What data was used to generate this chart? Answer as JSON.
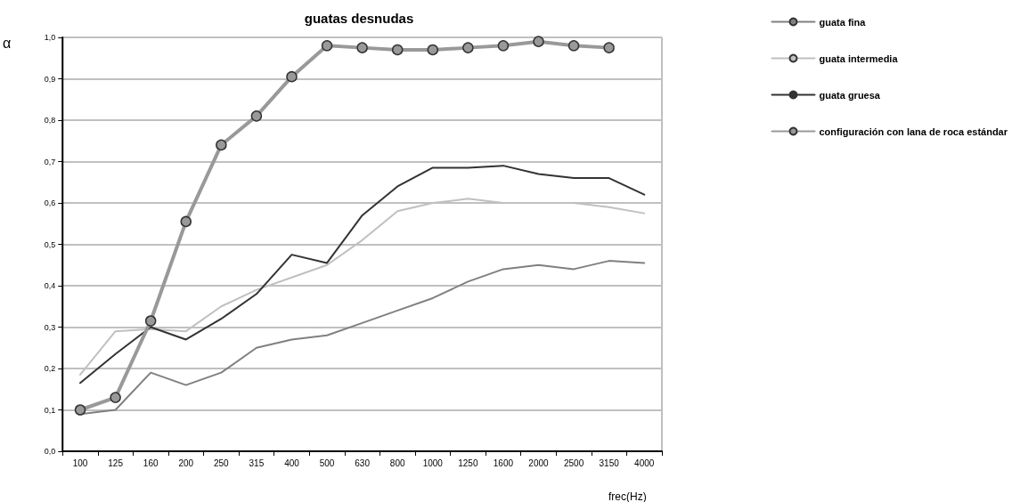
{
  "chart_data": {
    "type": "line",
    "title": "guatas desnudas",
    "xlabel": "frec(Hz)",
    "ylabel": "α",
    "categories": [
      "100",
      "125",
      "160",
      "200",
      "250",
      "315",
      "400",
      "500",
      "630",
      "800",
      "1000",
      "1250",
      "1600",
      "2000",
      "2500",
      "3150",
      "4000"
    ],
    "series": [
      {
        "name": "guata fina",
        "color": "#808080",
        "values": [
          0.09,
          0.1,
          0.19,
          0.16,
          0.19,
          0.25,
          0.27,
          0.28,
          0.31,
          0.34,
          0.37,
          0.41,
          0.44,
          0.45,
          0.44,
          0.46,
          0.455
        ]
      },
      {
        "name": "guata intermedia",
        "color": "#c0c0c0",
        "values": [
          0.185,
          0.29,
          0.295,
          0.29,
          0.35,
          0.39,
          0.42,
          0.45,
          0.51,
          0.58,
          0.6,
          0.61,
          0.6,
          0.6,
          0.6,
          0.59,
          0.575
        ]
      },
      {
        "name": "guata gruesa",
        "color": "#333333",
        "values": [
          0.165,
          0.235,
          0.3,
          0.27,
          0.32,
          0.38,
          0.475,
          0.455,
          0.57,
          0.64,
          0.685,
          0.685,
          0.69,
          0.67,
          0.66,
          0.66,
          0.62
        ]
      },
      {
        "name": "configuración con lana de roca estándar",
        "color": "#999999",
        "marker": "circle",
        "values": [
          0.1,
          0.13,
          0.315,
          0.555,
          0.74,
          0.81,
          0.905,
          0.98,
          0.975,
          0.97,
          0.97,
          0.975,
          0.98,
          0.99,
          0.98,
          0.975,
          null
        ]
      }
    ],
    "ylim": [
      0,
      1
    ],
    "yticks": [
      {
        "value": 0,
        "label": "0,0"
      },
      {
        "value": 0.1,
        "label": "0,1"
      },
      {
        "value": 0.2,
        "label": "0,2"
      },
      {
        "value": 0.3,
        "label": "0,3"
      },
      {
        "value": 0.4,
        "label": "0,4"
      },
      {
        "value": 0.5,
        "label": "0,5"
      },
      {
        "value": 0.6,
        "label": "0,6"
      },
      {
        "value": 0.7,
        "label": "0,7"
      },
      {
        "value": 0.8,
        "label": "0,8"
      },
      {
        "value": 0.9,
        "label": "0,9"
      },
      {
        "value": 1,
        "label": "1,0"
      }
    ],
    "grid": "y",
    "legend": "right"
  }
}
